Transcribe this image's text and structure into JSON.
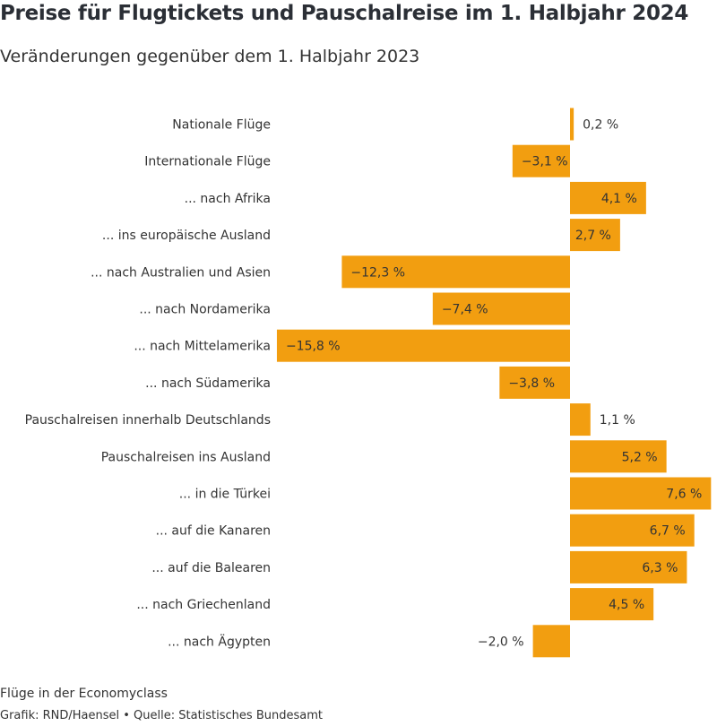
{
  "header": {
    "title": "Preise für Flugtickets und Pauschalreise im 1. Halbjahr 2024",
    "subtitle": "Veränderungen gegenüber dem 1. Halbjahr 2023"
  },
  "footer": {
    "note": "Flüge in der Economyclass",
    "credit": "Grafik: RND/Haensel • Quelle: Statistisches Bundesamt"
  },
  "colors": {
    "bar": "#f29e10",
    "label_text": "#333333"
  },
  "chart_data": {
    "type": "bar",
    "orientation": "horizontal",
    "title": "Preise für Flugtickets und Pauschalreise im 1. Halbjahr 2024",
    "subtitle": "Veränderungen gegenüber dem 1. Halbjahr 2023",
    "unit": "%",
    "categories": [
      "Nationale Flüge",
      "Internationale Flüge",
      "... nach Afrika",
      "... ins europäische Ausland",
      "... nach Australien und Asien",
      "... nach Nordamerika",
      "... nach Mittelamerika",
      "... nach Südamerika",
      "Pauschalreisen innerhalb Deutschlands",
      "Pauschalreisen ins Ausland",
      "... in die Türkei",
      "... auf die Kanaren",
      "... auf die Balearen",
      "... nach Griechenland",
      "... nach Ägypten"
    ],
    "values": [
      0.2,
      -3.1,
      4.1,
      2.7,
      -12.3,
      -7.4,
      -15.8,
      -3.8,
      1.1,
      5.2,
      7.6,
      6.7,
      6.3,
      4.5,
      -2.0
    ],
    "value_labels": [
      "0,2 %",
      "−3,1 %",
      "4,1 %",
      "2,7 %",
      "−12,3 %",
      "−7,4 %",
      "−15,8 %",
      "−3,8 %",
      "1,1 %",
      "5,2 %",
      "7,6 %",
      "6,7 %",
      "6,3 %",
      "4,5 %",
      "−2,0 %"
    ],
    "xlim": [
      -15.8,
      7.8
    ],
    "grid": false,
    "legend": "none"
  }
}
